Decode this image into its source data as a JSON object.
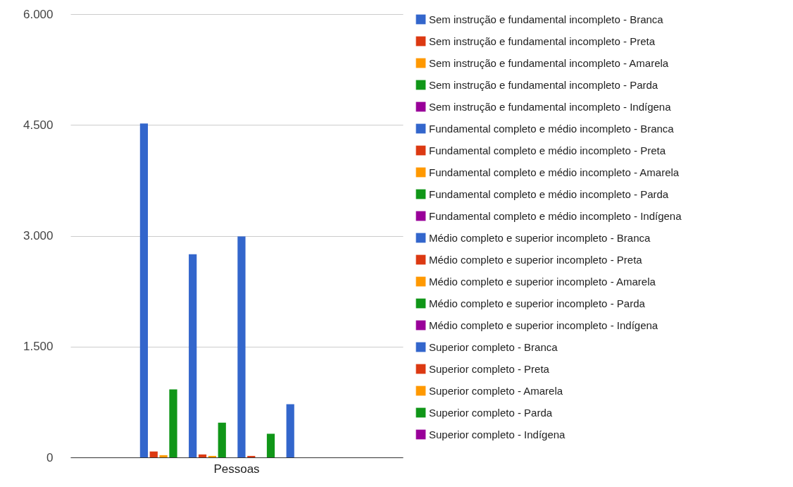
{
  "chart_data": {
    "type": "bar",
    "categories": [
      "Pessoas"
    ],
    "series": [
      {
        "name": "Sem instrução e fundamental incompleto - Branca",
        "color": "#3366cc",
        "values": [
          4520
        ]
      },
      {
        "name": "Sem instrução e fundamental incompleto - Preta",
        "color": "#dc3912",
        "values": [
          80
        ]
      },
      {
        "name": "Sem instrução e fundamental incompleto - Amarela",
        "color": "#ff9900",
        "values": [
          30
        ]
      },
      {
        "name": "Sem instrução e fundamental incompleto - Parda",
        "color": "#109618",
        "values": [
          920
        ]
      },
      {
        "name": "Sem instrução e fundamental incompleto - Indígena",
        "color": "#990099",
        "values": [
          0
        ]
      },
      {
        "name": "Fundamental completo e médio incompleto - Branca",
        "color": "#3366cc",
        "values": [
          2750
        ]
      },
      {
        "name": "Fundamental completo e médio incompleto - Preta",
        "color": "#dc3912",
        "values": [
          40
        ]
      },
      {
        "name": "Fundamental completo e médio incompleto - Amarela",
        "color": "#ff9900",
        "values": [
          20
        ]
      },
      {
        "name": "Fundamental completo e médio incompleto - Parda",
        "color": "#109618",
        "values": [
          470
        ]
      },
      {
        "name": "Fundamental completo e médio incompleto - Indígena",
        "color": "#990099",
        "values": [
          0
        ]
      },
      {
        "name": "Médio completo e superior incompleto - Branca",
        "color": "#3366cc",
        "values": [
          2990
        ]
      },
      {
        "name": "Médio completo e superior incompleto - Preta",
        "color": "#dc3912",
        "values": [
          20
        ]
      },
      {
        "name": "Médio completo e superior incompleto - Amarela",
        "color": "#ff9900",
        "values": [
          0
        ]
      },
      {
        "name": "Médio completo e superior incompleto - Parda",
        "color": "#109618",
        "values": [
          320
        ]
      },
      {
        "name": "Médio completo e superior incompleto - Indígena",
        "color": "#990099",
        "values": [
          0
        ]
      },
      {
        "name": "Superior completo - Branca",
        "color": "#3366cc",
        "values": [
          720
        ]
      },
      {
        "name": "Superior completo - Preta",
        "color": "#dc3912",
        "values": [
          0
        ]
      },
      {
        "name": "Superior completo - Amarela",
        "color": "#ff9900",
        "values": [
          0
        ]
      },
      {
        "name": "Superior completo - Parda",
        "color": "#109618",
        "values": [
          0
        ]
      },
      {
        "name": "Superior completo - Indígena",
        "color": "#990099",
        "values": [
          0
        ]
      }
    ],
    "ylim": [
      0,
      6000
    ],
    "yticks": [
      0,
      {
        "value": 1500,
        "label": "1.500"
      },
      {
        "value": 3000,
        "label": "3.000"
      },
      {
        "value": 4500,
        "label": "4.500"
      },
      {
        "value": 6000,
        "label": "6.000"
      }
    ],
    "grid": "y",
    "legend": "right"
  }
}
